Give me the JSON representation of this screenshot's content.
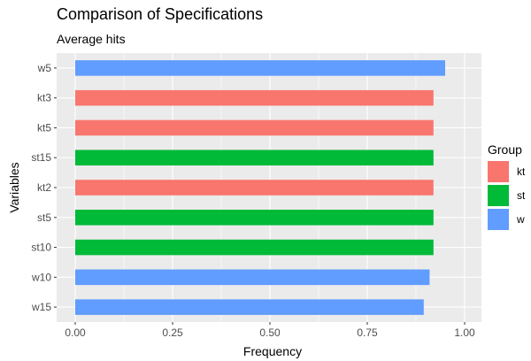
{
  "chart_data": {
    "type": "bar",
    "orientation": "horizontal",
    "title": "Comparison of Specifications",
    "subtitle": "Average hits",
    "xlabel": "Frequency",
    "ylabel": "Variables",
    "xlim": [
      0,
      1
    ],
    "x_ticks": [
      "0.00",
      "0.25",
      "0.50",
      "0.75",
      "1.00"
    ],
    "categories": [
      "w5",
      "kt3",
      "kt5",
      "st15",
      "kt2",
      "st5",
      "st10",
      "w10",
      "w15"
    ],
    "values": [
      0.95,
      0.92,
      0.92,
      0.92,
      0.92,
      0.92,
      0.92,
      0.91,
      0.895
    ],
    "groups": [
      "w",
      "kt",
      "kt",
      "st",
      "kt",
      "st",
      "st",
      "w",
      "w"
    ],
    "legend": {
      "title": "Group",
      "position": "right",
      "entries": [
        {
          "label": "kt",
          "color": "#F8766D"
        },
        {
          "label": "st",
          "color": "#00BA38"
        },
        {
          "label": "w",
          "color": "#619CFF"
        }
      ]
    },
    "grid": true,
    "panel_background": "#EBEBEB"
  }
}
